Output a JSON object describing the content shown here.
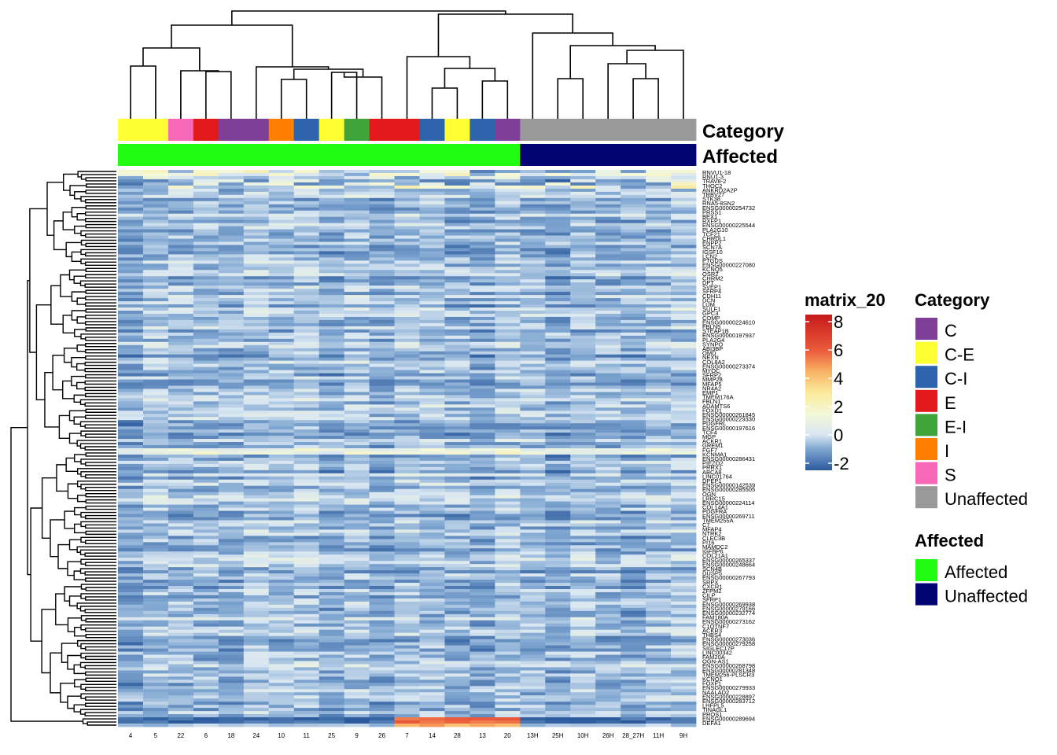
{
  "chart_data": {
    "type": "heatmap",
    "matrix_name": "matrix_20",
    "columns": [
      "4",
      "5",
      "22",
      "6",
      "18",
      "24",
      "10",
      "11",
      "25",
      "9",
      "26",
      "7",
      "14",
      "28",
      "13",
      "20",
      "13H",
      "25H",
      "10H",
      "26H",
      "28_27H",
      "11H",
      "9H"
    ],
    "column_category": [
      "C-E",
      "C-E",
      "S",
      "E",
      "C",
      "C",
      "I",
      "C-I",
      "C-E",
      "E-I",
      "E",
      "E",
      "C-I",
      "C-E",
      "C-I",
      "C",
      "Unaffected",
      "Unaffected",
      "Unaffected",
      "Unaffected",
      "Unaffected",
      "Unaffected",
      "Unaffected"
    ],
    "column_affected": [
      "Affected",
      "Affected",
      "Affected",
      "Affected",
      "Affected",
      "Affected",
      "Affected",
      "Affected",
      "Affected",
      "Affected",
      "Affected",
      "Affected",
      "Affected",
      "Affected",
      "Affected",
      "Affected",
      "Unaffected",
      "Unaffected",
      "Unaffected",
      "Unaffected",
      "Unaffected",
      "Unaffected",
      "Unaffected"
    ],
    "row_count": 178,
    "row_labels_visible": [
      "RNVU1-18",
      "RNU1-3",
      "TRAV8-2",
      "THOC2",
      "ANKRD2A2P",
      "TRBV27",
      "STK38",
      "RNA5-8SN2",
      "ENSG00000254732",
      "PRSS1",
      "BEX1",
      "RXFP1",
      "ENSG00000225544",
      "PLA2G10",
      "TCF21",
      "CHRDL1",
      "ENPP2",
      "SCN7A",
      "IGSF10",
      "LCN2",
      "PTGDS",
      "ENSG00000227080",
      "KCNQ5",
      "OSR2",
      "CHRM2",
      "DPT",
      "SVEP1",
      "SFRP4",
      "CDH11",
      "DCN",
      "LUM",
      "SULF1",
      "GPC3",
      "COMP",
      "ENSG00000224610",
      "FBLN5",
      "STEAP1B",
      "ENSG00000197937",
      "PLA2G4",
      "SYNPO",
      "ABI3BP",
      "OMD",
      "NEXN",
      "COL8A2",
      "ENSG00000273374",
      "MYOC",
      "SFRP2",
      "MMP28",
      "MFAP5",
      "NR4A2",
      "EMP1",
      "TMEM176A",
      "FBLN1",
      "ADAMTS6",
      "FOXD1",
      "ENSG00000261845",
      "ENSG00000229330",
      "PDGFRL",
      "ENSG00000197616",
      "TCF4",
      "MGP",
      "ACKR1",
      "GREM1",
      "FGF7",
      "KCNMA1",
      "ENSG00000286431",
      "PIEZO2",
      "PRRX1",
      "ABCA8",
      "LINC01764",
      "DPEP1",
      "ENSG00000142539",
      "ENSG00000285505",
      "OGN",
      "LRRC15",
      "ENSG00000224114",
      "COL14A1",
      "PDGFRA",
      "ENSG00000269711",
      "TMEM255A",
      "C7",
      "MFAP4",
      "NTRK2",
      "CLEC3B",
      "PI16",
      "MAMDC2",
      "IGFBP6",
      "COL21A1",
      "ENSG00000265337",
      "ENSG00000248664",
      "SCN4B",
      "DUSP5",
      "ENSG00000267793",
      "SRPX",
      "CXCR1",
      "ZFPM2",
      "CILP",
      "SFRP1",
      "ENSG00000269938",
      "ENSG00000279166",
      "ENSG00000232774",
      "FAM180A",
      "ENSG00000273162",
      "C1QTNF7",
      "ACKR3",
      "THBS4",
      "ENSG00000273036",
      "ENSG00000279258",
      "SIGLEC17P",
      "LINC00342",
      "FAM20A",
      "OGN-AS1",
      "ENSG00000268798",
      "ENSG00000281348",
      "TMEM256-PLSCR3",
      "KCNQ1",
      "FOXF1",
      "ENSG00000279933",
      "NAALAD2",
      "ENSG00000228897",
      "ENSG00000283712",
      "LHFPL5",
      "TINAGL1",
      "PROS1",
      "ENSG00000289694",
      "DEFA1"
    ],
    "legend": {
      "title": "matrix_20",
      "ticks": [
        -2,
        0,
        2,
        4,
        6,
        8
      ],
      "range": [
        -2.5,
        8.5
      ]
    },
    "annotations": [
      {
        "title": "Category",
        "labels": [
          "C",
          "C-E",
          "C-I",
          "E",
          "E-I",
          "I",
          "S",
          "Unaffected"
        ],
        "colors": [
          "#7f3f98",
          "#ffff33",
          "#2d64ad",
          "#e31a1c",
          "#3fa43c",
          "#ff7f00",
          "#f768b9",
          "#999999"
        ]
      },
      {
        "title": "Affected",
        "labels": [
          "Affected",
          "Unaffected"
        ],
        "colors": [
          "#1ffc11",
          "#020270"
        ]
      }
    ],
    "dendrogram_columns_groups": [
      [
        "4",
        "5",
        "22",
        "6",
        "18",
        "24",
        "10",
        "11",
        "25",
        "9",
        "26"
      ],
      [
        "7",
        "14",
        "28",
        "13",
        "20"
      ],
      [
        "13H",
        "25H",
        "10H",
        "26H",
        "28_27H",
        "11H",
        "9H"
      ]
    ]
  }
}
